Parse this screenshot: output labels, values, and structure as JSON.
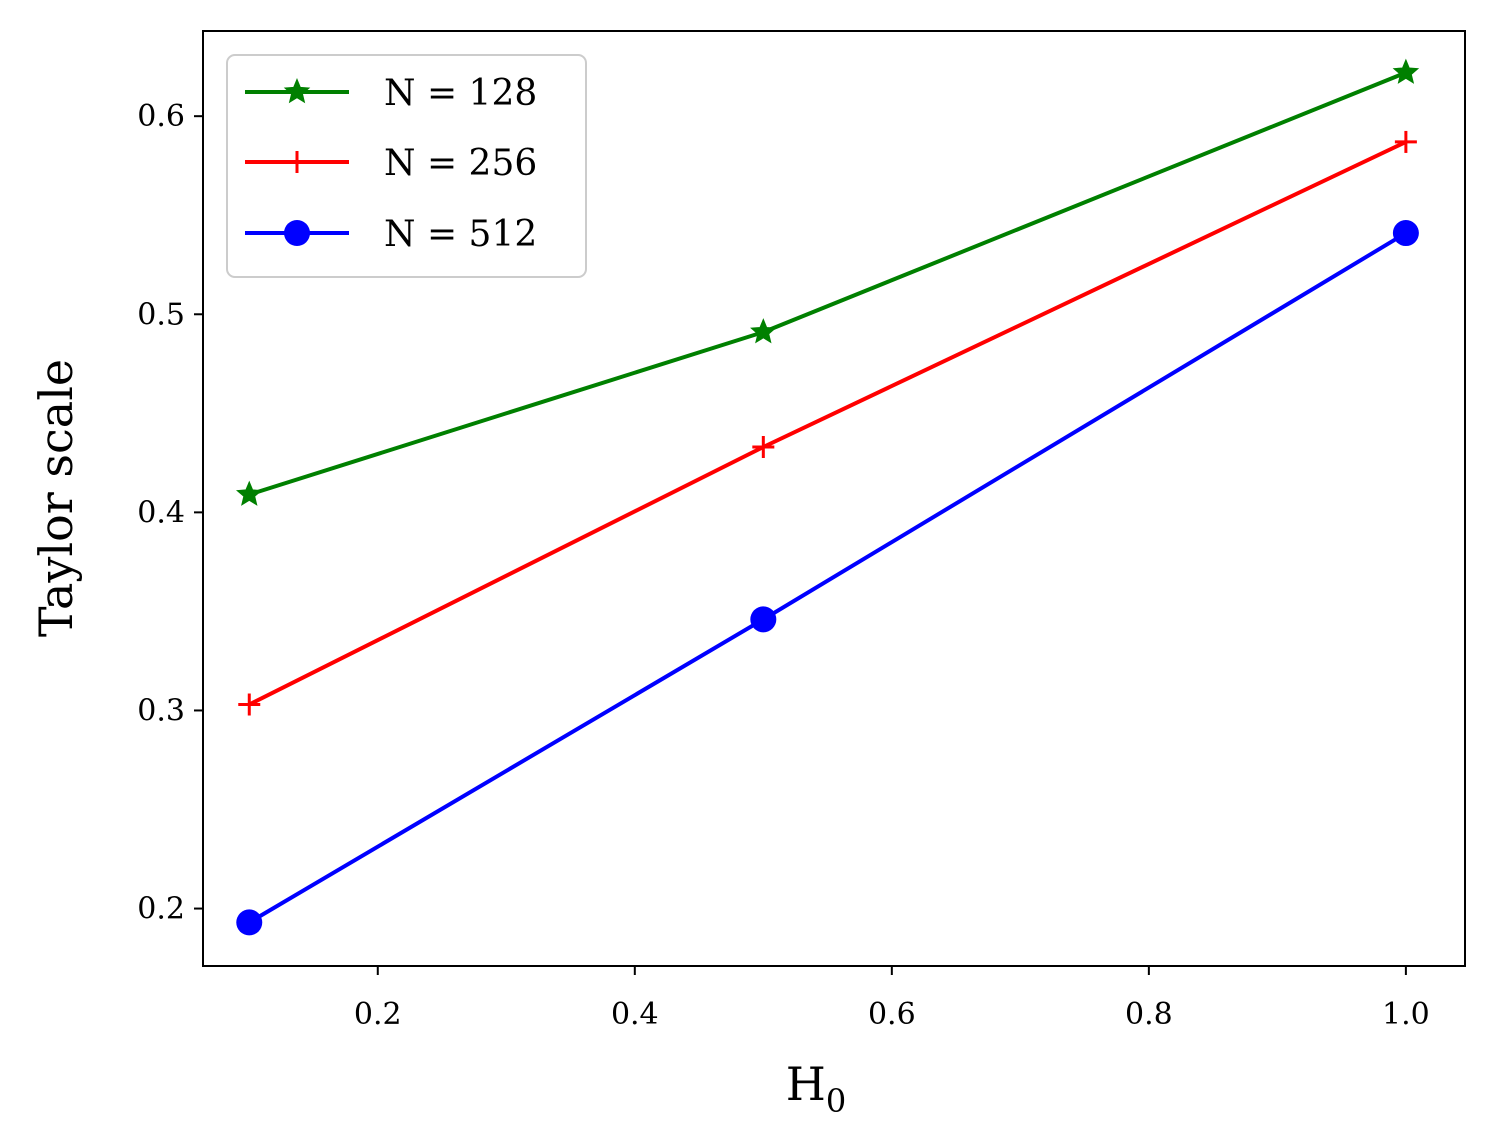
{
  "chart_data": {
    "type": "line",
    "title": "",
    "xlabel": "H",
    "xlabel_sub": "0",
    "ylabel": "Taylor scale",
    "xlim": [
      0.064,
      1.046
    ],
    "ylim": [
      0.171,
      0.643
    ],
    "x": [
      0.1,
      0.5,
      1.0
    ],
    "xticks": [
      0.2,
      0.4,
      0.6,
      0.8,
      1.0
    ],
    "xtick_labels": [
      "0.2",
      "0.4",
      "0.6",
      "0.8",
      "1.0"
    ],
    "yticks": [
      0.2,
      0.3,
      0.4,
      0.5,
      0.6
    ],
    "ytick_labels": [
      "0.2",
      "0.3",
      "0.4",
      "0.5",
      "0.6"
    ],
    "grid": false,
    "legend_position": "top-left",
    "series": [
      {
        "name": "N = 128",
        "color": "#008000",
        "marker": "star",
        "values": [
          0.409,
          0.491,
          0.622
        ]
      },
      {
        "name": "N = 256",
        "color": "#ff0000",
        "marker": "plus",
        "values": [
          0.303,
          0.433,
          0.587
        ]
      },
      {
        "name": "N = 512",
        "color": "#0000ff",
        "marker": "circle",
        "values": [
          0.193,
          0.346,
          0.541
        ]
      }
    ]
  }
}
